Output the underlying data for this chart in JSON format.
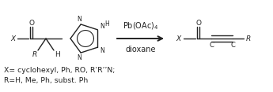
{
  "fig_width": 3.45,
  "fig_height": 1.17,
  "dpi": 100,
  "bg_color": "#ffffff",
  "line_color": "#222222",
  "line_width": 1.0,
  "font_size": 6.5,
  "label_font_size": 6.0,
  "reagent_text": "Pb(OAc)$_4$",
  "solvent_text": "dioxane",
  "caption_line1": "X= cyclohexyl, Ph, RO, R’R’’N;",
  "caption_line2": "R=H, Me, Ph, subst. Ph"
}
